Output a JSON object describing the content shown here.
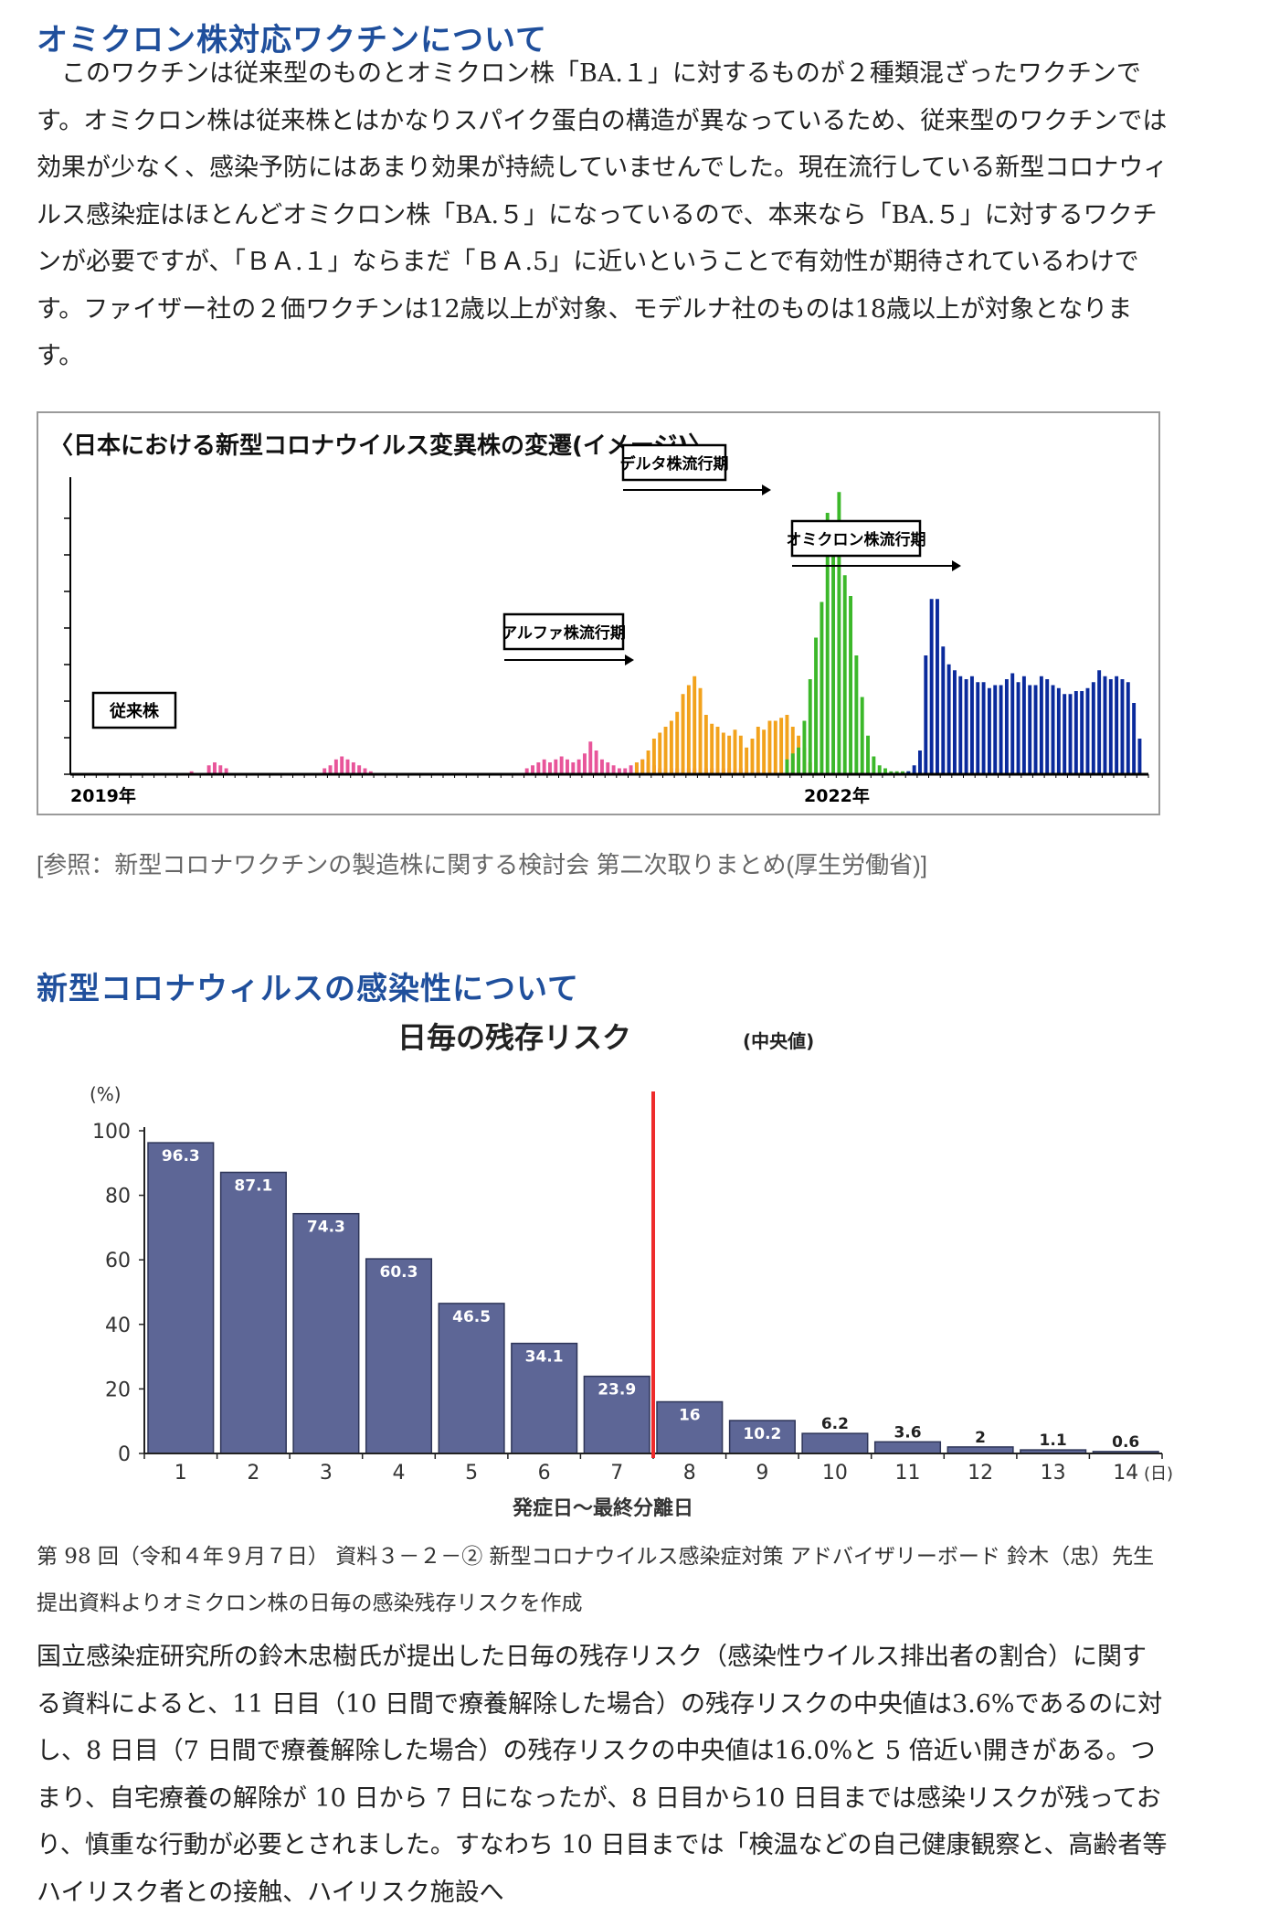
{
  "section1": {
    "title": "オミクロン株対応ワクチンについて",
    "paragraph": "　このワクチンは従来型のものとオミクロン株「BA.１」に対するものが２種類混ざったワクチンです。オミクロン株は従来株とはかなりスパイク蛋白の構造が異なっているため、従来型のワクチンでは効果が少なく、感染予防にはあまり効果が持続していませんでした。現在流行している新型コロナウィルス感染症はほとんどオミクロン株「BA.５」になっているので、本来なら「BA.５」に対するワクチンが必要ですが、「ＢＡ.１」ならまだ「ＢＡ.5」に近いということで有効性が期待されているわけです。ファイザー社の２価ワクチンは12歳以上が対象、モデルナ社のものは18歳以上が対象となります。",
    "figure": {
      "title": "〈日本における新型コロナウイルス変異株の変遷(イメージ)〉",
      "labels": {
        "conventional": "従来株",
        "alpha": "アルファ株流行期",
        "delta": "デルタ株流行期",
        "omicron": "オミクロン株流行期",
        "year_2019": "2019年",
        "year_2022": "2022年"
      },
      "colors": {
        "conventional": "#e8559a",
        "alpha": "#f2a21c",
        "delta": "#3cb82a",
        "omicron": "#0a2a9c"
      },
      "series": {
        "conventional": [
          0,
          0,
          0,
          0,
          0,
          0,
          0,
          0,
          0,
          0,
          0,
          0,
          0,
          0,
          0,
          0,
          0,
          0,
          0,
          0,
          1,
          0,
          0,
          3,
          4,
          3,
          2,
          0,
          0,
          0,
          0,
          0,
          0,
          0,
          0,
          0,
          0,
          0,
          0,
          0,
          0,
          0,
          0,
          2,
          3,
          5,
          6,
          5,
          4,
          3,
          2,
          1,
          0,
          0,
          0,
          0,
          0,
          0,
          0,
          0,
          0,
          0,
          0,
          0,
          0,
          0,
          0,
          0,
          0,
          0,
          0,
          0,
          0,
          0,
          0,
          0,
          0,
          0,
          2,
          3,
          4,
          5,
          4,
          5,
          6,
          5,
          4,
          5,
          7,
          11,
          8,
          5,
          4,
          3,
          2,
          2,
          3,
          4,
          5,
          4,
          3,
          2,
          2,
          2,
          2,
          2,
          2,
          2,
          2,
          2,
          2,
          2,
          2,
          2,
          2,
          2,
          1,
          1,
          1,
          0,
          0,
          0,
          0,
          0,
          0,
          0,
          0,
          0,
          0,
          0,
          0,
          0,
          0,
          0,
          0,
          0,
          0,
          0,
          0,
          0,
          0,
          0,
          0,
          0,
          0,
          0,
          0,
          0,
          0,
          0,
          0,
          0,
          0,
          0,
          0,
          0,
          0,
          0,
          0,
          0,
          0,
          0,
          0,
          0,
          0,
          0,
          0,
          0,
          0,
          0,
          0,
          0,
          0,
          0,
          0,
          0,
          0,
          0,
          0,
          0,
          0,
          0,
          0,
          0,
          0,
          0
        ],
        "alpha": [
          0,
          0,
          0,
          0,
          0,
          0,
          0,
          0,
          0,
          0,
          0,
          0,
          0,
          0,
          0,
          0,
          0,
          0,
          0,
          0,
          0,
          0,
          0,
          0,
          0,
          0,
          0,
          0,
          0,
          0,
          0,
          0,
          0,
          0,
          0,
          0,
          0,
          0,
          0,
          0,
          0,
          0,
          0,
          0,
          0,
          0,
          0,
          0,
          0,
          0,
          0,
          0,
          0,
          0,
          0,
          0,
          0,
          0,
          0,
          0,
          0,
          0,
          0,
          0,
          0,
          0,
          0,
          0,
          0,
          0,
          0,
          0,
          0,
          0,
          0,
          0,
          0,
          0,
          0,
          0,
          0,
          0,
          0,
          0,
          0,
          0,
          0,
          0,
          0,
          0,
          0,
          0,
          0,
          0,
          0,
          0,
          0,
          4,
          5,
          8,
          12,
          14,
          16,
          18,
          21,
          27,
          30,
          33,
          29,
          20,
          17,
          16,
          14,
          13,
          15,
          13,
          9,
          12,
          16,
          15,
          18,
          18,
          19,
          20,
          16,
          13,
          9,
          4,
          1,
          0,
          0,
          0,
          0,
          0,
          0,
          0,
          0,
          0,
          0,
          0,
          0,
          0,
          0,
          0,
          0,
          0,
          0,
          0,
          0,
          0,
          0,
          0,
          0,
          0,
          0,
          0,
          0,
          0,
          0,
          0,
          0,
          0,
          0,
          0,
          0,
          0,
          0,
          0,
          0,
          0,
          0,
          0,
          0,
          0,
          0,
          0,
          0,
          0,
          0,
          0,
          0
        ],
        "delta": [
          0,
          0,
          0,
          0,
          0,
          0,
          0,
          0,
          0,
          0,
          0,
          0,
          0,
          0,
          0,
          0,
          0,
          0,
          0,
          0,
          0,
          0,
          0,
          0,
          0,
          0,
          0,
          0,
          0,
          0,
          0,
          0,
          0,
          0,
          0,
          0,
          0,
          0,
          0,
          0,
          0,
          0,
          0,
          0,
          0,
          0,
          0,
          0,
          0,
          0,
          0,
          0,
          0,
          0,
          0,
          0,
          0,
          0,
          0,
          0,
          0,
          0,
          0,
          0,
          0,
          0,
          0,
          0,
          0,
          0,
          0,
          0,
          0,
          0,
          0,
          0,
          0,
          0,
          0,
          0,
          0,
          0,
          0,
          0,
          0,
          0,
          0,
          0,
          0,
          0,
          0,
          0,
          0,
          0,
          0,
          0,
          0,
          0,
          0,
          0,
          0,
          0,
          0,
          0,
          0,
          0,
          0,
          0,
          0,
          0,
          0,
          0,
          0,
          0,
          0,
          0,
          0,
          0,
          0,
          0,
          0,
          0,
          0,
          5,
          7,
          9,
          18,
          32,
          46,
          58,
          88,
          78,
          95,
          67,
          60,
          40,
          26,
          13,
          6,
          3,
          2,
          1,
          1,
          1,
          1,
          1,
          0,
          0,
          0,
          0,
          0,
          0,
          0,
          0,
          0,
          0,
          0,
          0,
          0,
          0,
          0,
          0,
          0,
          0,
          0,
          0,
          0,
          0,
          0,
          0,
          0,
          0,
          0,
          0,
          0,
          0,
          0,
          0,
          0,
          0,
          0,
          0,
          0,
          0,
          0,
          0,
          0,
          0,
          0,
          0
        ],
        "omicron": [
          0,
          0,
          0,
          0,
          0,
          0,
          0,
          0,
          0,
          0,
          0,
          0,
          0,
          0,
          0,
          0,
          0,
          0,
          0,
          0,
          0,
          0,
          0,
          0,
          0,
          0,
          0,
          0,
          0,
          0,
          0,
          0,
          0,
          0,
          0,
          0,
          0,
          0,
          0,
          0,
          0,
          0,
          0,
          0,
          0,
          0,
          0,
          0,
          0,
          0,
          0,
          0,
          0,
          0,
          0,
          0,
          0,
          0,
          0,
          0,
          0,
          0,
          0,
          0,
          0,
          0,
          0,
          0,
          0,
          0,
          0,
          0,
          0,
          0,
          0,
          0,
          0,
          0,
          0,
          0,
          0,
          0,
          0,
          0,
          0,
          0,
          0,
          0,
          0,
          0,
          0,
          0,
          0,
          0,
          0,
          0,
          0,
          0,
          0,
          0,
          0,
          0,
          0,
          0,
          0,
          0,
          0,
          0,
          0,
          0,
          0,
          0,
          0,
          0,
          0,
          0,
          0,
          0,
          0,
          0,
          0,
          0,
          0,
          0,
          0,
          0,
          0,
          0,
          0,
          0,
          0,
          0,
          0,
          0,
          0,
          0,
          0,
          0,
          0,
          0,
          0,
          0,
          0,
          0,
          1,
          3,
          8,
          40,
          59,
          59,
          43,
          37,
          35,
          33,
          32,
          33,
          31,
          31,
          29,
          30,
          30,
          32,
          34,
          31,
          33,
          30,
          30,
          33,
          32,
          30,
          29,
          27,
          27,
          28,
          28,
          29,
          31,
          35,
          33,
          32,
          33,
          32,
          31,
          24,
          12,
          0
        ]
      }
    },
    "source": "[参照：新型コロナワクチンの製造株に関する検討会 第二次取りまとめ(厚生労働省)]"
  },
  "section2": {
    "title": "新型コロナウィルスの感染性について",
    "source_note": "第 98 回（令和４年９月７日） 資料３－２－② 新型コロナウイルス感染症対策 アドバイザリーボード 鈴木（忠）先生提出資料よりオミクロン株の日毎の感染残存リスクを作成",
    "paragraph": "国立感染症研究所の鈴木忠樹氏が提出した日毎の残存リスク（感染性ウイルス排出者の割合）に関する資料によると、11 日目（10 日間で療養解除した場合）の残存リスクの中央値は3.6%であるのに対し、8 日目（7 日間で療養解除した場合）の残存リスクの中央値は16.0%と 5 倍近い開きがある。つまり、自宅療養の解除が 10 日から 7 日になったが、8 日目から10 日目までは感染リスクが残っており、慎重な行動が必要とされました。すなわち 10 日目までは「検温などの自己健康観察と、高齢者等ハイリスク者との接触、ハイリスク施設へ"
  },
  "chart_data": {
    "type": "bar",
    "title": "日毎の残存リスク",
    "title_suffix": "(中央値)",
    "ylabel": "(%)",
    "xlabel": "発症日〜最終分離日",
    "x_unit": "(日)",
    "categories": [
      "1",
      "2",
      "3",
      "4",
      "5",
      "6",
      "7",
      "8",
      "9",
      "10",
      "11",
      "12",
      "13",
      "14"
    ],
    "values": [
      96.3,
      87.1,
      74.3,
      60.3,
      46.5,
      34.1,
      23.9,
      16,
      10.2,
      6.2,
      3.6,
      2,
      1.1,
      0.6
    ],
    "value_labels": [
      "96.3",
      "87.1",
      "74.3",
      "60.3",
      "46.5",
      "34.1",
      "23.9",
      "16",
      "10.2",
      "6.2",
      "3.6",
      "2",
      "1.1",
      "0.6"
    ],
    "yticks": [
      "0",
      "20",
      "40",
      "60",
      "80",
      "100"
    ],
    "ylim": [
      0,
      100
    ],
    "bar_color": "#5d6696",
    "marker_color": "#ee2b2b",
    "marker_after_category": "7"
  }
}
